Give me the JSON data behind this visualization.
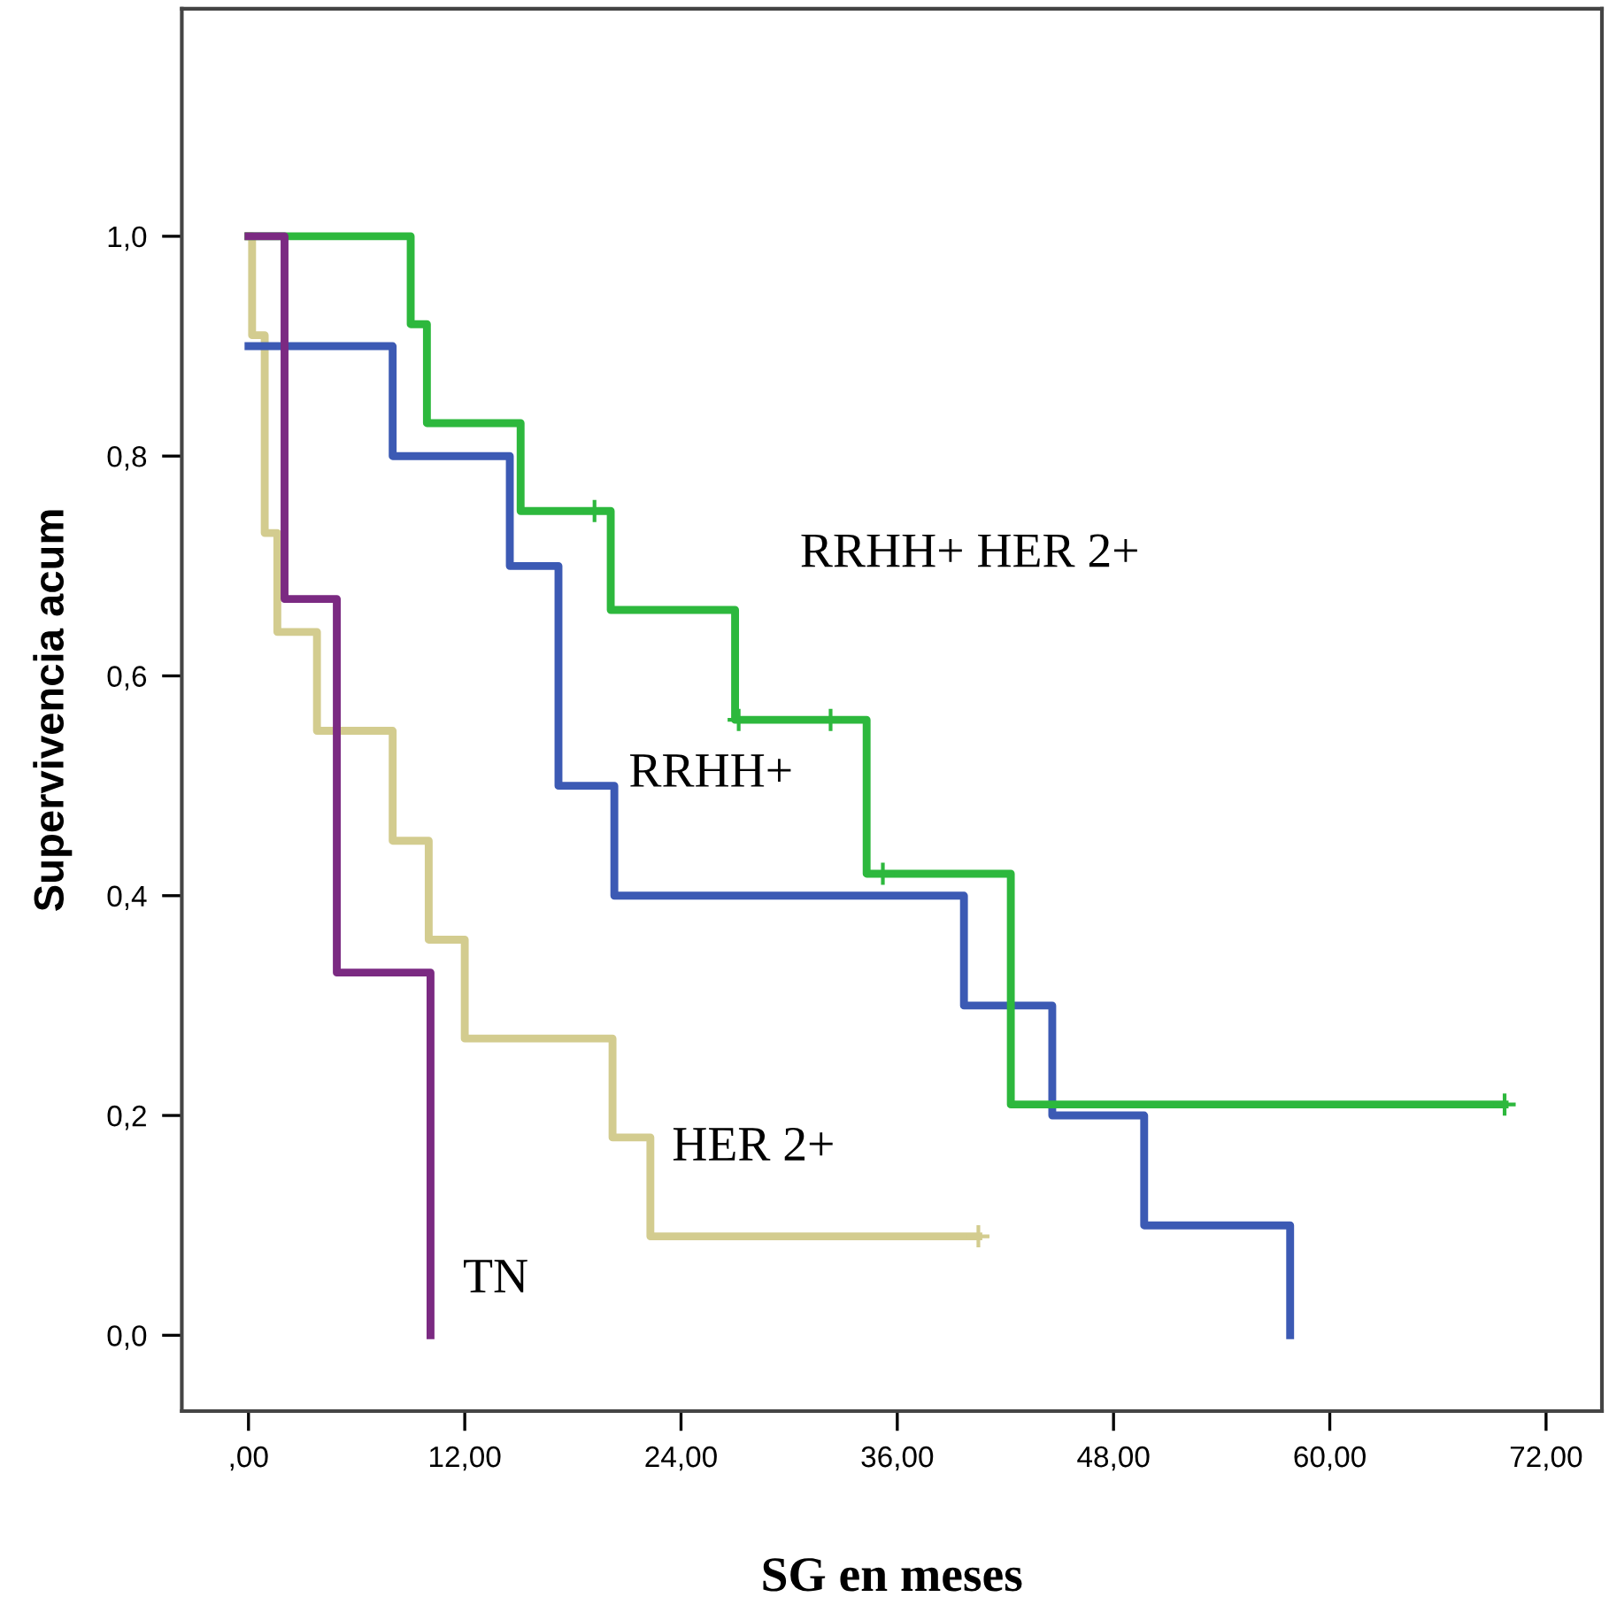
{
  "chart_data": {
    "type": "step",
    "xlabel": "SG en meses",
    "ylabel": "Supervivencia acum",
    "xlim": [
      -3.7,
      75.1
    ],
    "ylim": [
      -0.069,
      1.207
    ],
    "xticks": [
      {
        "value": 0,
        "label": ",00"
      },
      {
        "value": 12,
        "label": "12,00"
      },
      {
        "value": 24,
        "label": "24,00"
      },
      {
        "value": 36,
        "label": "36,00"
      },
      {
        "value": 48,
        "label": "48,00"
      },
      {
        "value": 60,
        "label": "60,00"
      },
      {
        "value": 72,
        "label": "72,00"
      }
    ],
    "yticks": [
      {
        "value": 0,
        "label": "0,0"
      },
      {
        "value": 0.2,
        "label": "0,2"
      },
      {
        "value": 0.4,
        "label": "0,4"
      },
      {
        "value": 0.6,
        "label": "0,6"
      },
      {
        "value": 0.8,
        "label": "0,8"
      },
      {
        "value": 1.0,
        "label": "1,0"
      }
    ],
    "grid": false,
    "legend": false,
    "line_style": "solid",
    "series": [
      {
        "name": "HER 2+",
        "color": "#d3cc8f",
        "x": [
          0,
          0.2,
          0.9,
          1.6,
          3.8,
          8.0,
          10.0,
          12.0,
          20.2,
          22.3,
          40.5
        ],
        "values": [
          1,
          0.91,
          0.73,
          0.64,
          0.55,
          0.45,
          0.36,
          0.27,
          0.18,
          0.09,
          0.09
        ]
      },
      {
        "name": "RRHH+",
        "color": "#3c5ab4",
        "x": [
          0,
          8.0,
          14.5,
          17.2,
          20.3,
          39.7,
          44.6,
          49.7,
          57.8
        ],
        "values": [
          0.9,
          0.8,
          0.7,
          0.5,
          0.4,
          0.3,
          0.2,
          0.1,
          0
        ]
      },
      {
        "name": "RRHH+ HER 2+",
        "color": "#2db83d",
        "x": [
          0,
          9.0,
          9.9,
          15.1,
          20.1,
          27.0,
          34.3,
          42.3,
          69.7
        ],
        "values": [
          1,
          0.92,
          0.83,
          0.75,
          0.66,
          0.56,
          0.42,
          0.21,
          0.21
        ]
      },
      {
        "name": "TN",
        "color": "#7b2a82",
        "x": [
          0,
          2.0,
          4.9,
          10.1
        ],
        "values": [
          1,
          0.67,
          0.33,
          0
        ]
      },
      {
        "type": "scatter",
        "marker": "cross",
        "color": "#2db83d",
        "x": [
          19.2,
          27.2,
          32.3,
          35.2,
          69.7
        ],
        "values": [
          0.75,
          0.56,
          0.56,
          0.42,
          0.21
        ]
      },
      {
        "type": "scatter",
        "marker": "cross",
        "color": "#d3cc8f",
        "x": [
          40.5
        ],
        "values": [
          0.09
        ]
      }
    ]
  }
}
